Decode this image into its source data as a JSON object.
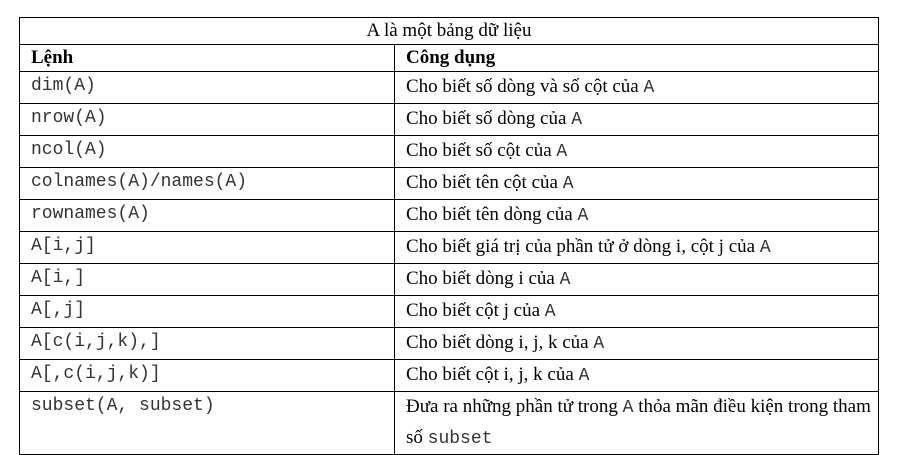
{
  "table": {
    "caption": "A là một bảng dữ liệu",
    "headers": {
      "command": "Lệnh",
      "usage": "Công dụng"
    },
    "rows": [
      {
        "cmd": "dim(A)",
        "desc": "Cho biết số dòng và số cột của ",
        "code": "A"
      },
      {
        "cmd": "nrow(A)",
        "desc": "Cho biết số dòng của ",
        "code": "A"
      },
      {
        "cmd": "ncol(A)",
        "desc": "Cho biết số cột của ",
        "code": "A"
      },
      {
        "cmd": "colnames(A)/names(A)",
        "desc": "Cho biết tên cột của ",
        "code": "A"
      },
      {
        "cmd": "rownames(A)",
        "desc": "Cho biết tên dòng của ",
        "code": "A"
      },
      {
        "cmd": "A[i,j]",
        "desc": "Cho biết giá trị của phần tử ở dòng i, cột j của ",
        "code": "A"
      },
      {
        "cmd": "A[i,]",
        "desc": "Cho biết dòng i của ",
        "code": "A"
      },
      {
        "cmd": "A[,j]",
        "desc": "Cho biết cột j của ",
        "code": "A"
      },
      {
        "cmd": "A[c(i,j,k),]",
        "desc": "Cho biết dòng i, j, k của ",
        "code": "A"
      },
      {
        "cmd": "A[,c(i,j,k)]",
        "desc": "Cho biết cột i, j, k của ",
        "code": "A"
      }
    ],
    "last_row": {
      "cmd": "subset(A, subset)",
      "desc_part1": "Đưa ra những phần tử trong ",
      "code1": "A",
      "desc_part2": " thỏa mãn điều kiện trong tham số ",
      "code2": "subset"
    }
  }
}
